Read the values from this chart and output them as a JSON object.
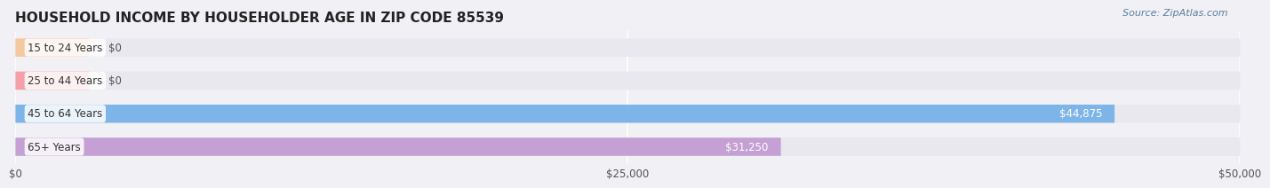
{
  "title": "HOUSEHOLD INCOME BY HOUSEHOLDER AGE IN ZIP CODE 85539",
  "source": "Source: ZipAtlas.com",
  "categories": [
    "15 to 24 Years",
    "25 to 44 Years",
    "45 to 64 Years",
    "65+ Years"
  ],
  "values": [
    0,
    0,
    44875,
    31250
  ],
  "bar_colors": [
    "#f5c9a0",
    "#f5a0a8",
    "#7eb5e8",
    "#c4a0d4"
  ],
  "bg_color": "#f0f0f5",
  "bar_bg_color": "#e8e8ee",
  "xlim": [
    0,
    50000
  ],
  "xticks": [
    0,
    25000,
    50000
  ],
  "xtick_labels": [
    "$0",
    "$25,000",
    "$50,000"
  ],
  "value_labels": [
    "$0",
    "$0",
    "$44,875",
    "$31,250"
  ],
  "title_fontsize": 11,
  "label_fontsize": 8.5,
  "source_fontsize": 8,
  "bar_height": 0.55
}
